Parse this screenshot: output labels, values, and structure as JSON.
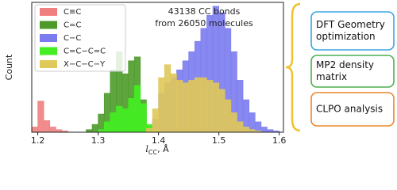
{
  "chart_data": {
    "type": "histogram",
    "annotation": [
      "43138 CC bonds",
      "from 26050 molecules"
    ],
    "ylabel": "Count",
    "xlabel_parts": [
      "l",
      "CC",
      ", Å"
    ],
    "xlim": [
      1.19,
      1.607
    ],
    "xticks": [
      1.2,
      1.3,
      1.4,
      1.5,
      1.6
    ],
    "ylim": [
      0,
      100
    ],
    "legend": "upper left",
    "series": [
      {
        "name": "C≡C",
        "color": "#f08080",
        "bins": [
          1.19,
          1.2,
          1.21,
          1.22,
          1.23,
          1.24,
          1.25
        ],
        "counts": [
          4,
          24,
          9,
          4,
          2,
          1
        ]
      },
      {
        "name": "C=C",
        "color": "#4d9a2a",
        "bins": [
          1.28,
          1.29,
          1.3,
          1.31,
          1.32,
          1.33,
          1.34,
          1.35,
          1.36,
          1.37,
          1.38,
          1.39,
          1.4
        ],
        "counts": [
          2,
          6,
          14,
          30,
          48,
          62,
          45,
          55,
          58,
          25,
          5,
          1
        ]
      },
      {
        "name": "C−C",
        "color": "#7b7bef",
        "bins": [
          1.38,
          1.39,
          1.4,
          1.41,
          1.42,
          1.43,
          1.44,
          1.45,
          1.46,
          1.47,
          1.48,
          1.49,
          1.5,
          1.51,
          1.52,
          1.53,
          1.54,
          1.55,
          1.56,
          1.57,
          1.58,
          1.59,
          1.6
        ],
        "counts": [
          3,
          10,
          30,
          38,
          42,
          48,
          55,
          62,
          70,
          80,
          90,
          97,
          92,
          80,
          62,
          40,
          25,
          15,
          8,
          4,
          2,
          1
        ]
      },
      {
        "name": "C=C−C=C",
        "color": "#44ee22",
        "bins": [
          1.3,
          1.31,
          1.32,
          1.33,
          1.34,
          1.35,
          1.36,
          1.37,
          1.38,
          1.39,
          1.4
        ],
        "counts": [
          2,
          8,
          15,
          20,
          18,
          26,
          36,
          22,
          6,
          2
        ]
      },
      {
        "name": "X−C−C−Y",
        "color": "#e0c85a",
        "bins": [
          1.38,
          1.39,
          1.4,
          1.41,
          1.42,
          1.43,
          1.44,
          1.45,
          1.46,
          1.47,
          1.48,
          1.49,
          1.5,
          1.51,
          1.52,
          1.53,
          1.54,
          1.55,
          1.56,
          1.57,
          1.58
        ],
        "counts": [
          3,
          18,
          42,
          52,
          45,
          40,
          38,
          40,
          42,
          42,
          40,
          38,
          33,
          25,
          15,
          8,
          4,
          2,
          1,
          0
        ]
      }
    ]
  },
  "diagram": {
    "steps": [
      {
        "lines": [
          "DFT Geometry",
          "optimization"
        ],
        "color": "#3aa6dd"
      },
      {
        "lines": [
          "MP2 density",
          "matrix"
        ],
        "color": "#4caf50"
      },
      {
        "lines": [
          "CLPO analysis"
        ],
        "color": "#e8872f"
      }
    ]
  }
}
